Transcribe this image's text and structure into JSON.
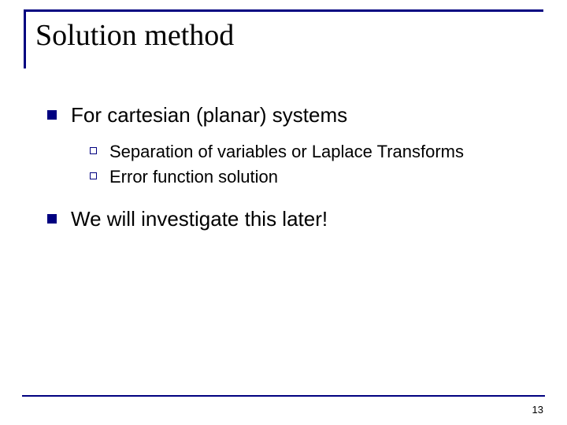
{
  "colors": {
    "accent": "#000080",
    "text": "#000000",
    "background": "#ffffff"
  },
  "typography": {
    "title_font": "Times New Roman",
    "body_font": "Arial",
    "title_size_pt": 38,
    "l1_size_pt": 26,
    "l2_size_pt": 22,
    "pagenum_size_pt": 13
  },
  "slide": {
    "title": "Solution method",
    "page_number": "13",
    "bullets": [
      {
        "text": "For cartesian (planar) systems",
        "sub": [
          "Separation of variables or Laplace Transforms",
          "Error function solution"
        ]
      },
      {
        "text": "We will investigate this later!",
        "sub": []
      }
    ]
  }
}
